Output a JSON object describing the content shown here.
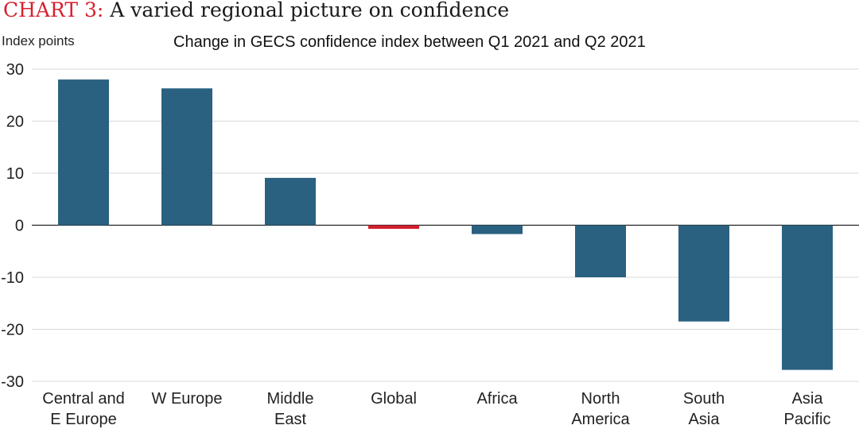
{
  "header": {
    "title_prefix": "CHART 3:",
    "title_text": "A varied regional picture on confidence"
  },
  "chart_data": {
    "type": "bar",
    "title": "Change in GECS confidence index between Q1 2021 and Q2 2021",
    "ylabel": "Index points",
    "xlabel": "",
    "categories": [
      [
        "Central and",
        "E Europe"
      ],
      [
        "W Europe"
      ],
      [
        "Middle",
        "East"
      ],
      [
        "Global"
      ],
      [
        "Africa"
      ],
      [
        "North",
        "America"
      ],
      [
        "South",
        "Asia"
      ],
      [
        "Asia",
        "Pacific"
      ]
    ],
    "values": [
      28,
      26.3,
      9.1,
      -0.7,
      -1.7,
      -10,
      -18.5,
      -27.8
    ],
    "ylim": [
      -30,
      30
    ],
    "yticks": [
      30,
      20,
      10,
      0,
      -10,
      -20,
      -30
    ],
    "grid": true,
    "colors": {
      "bar": "#2a6180",
      "highlight": "#d11f2f",
      "grid": "#d9d9d9",
      "axis": "#222222"
    },
    "highlight_category": "Global"
  }
}
